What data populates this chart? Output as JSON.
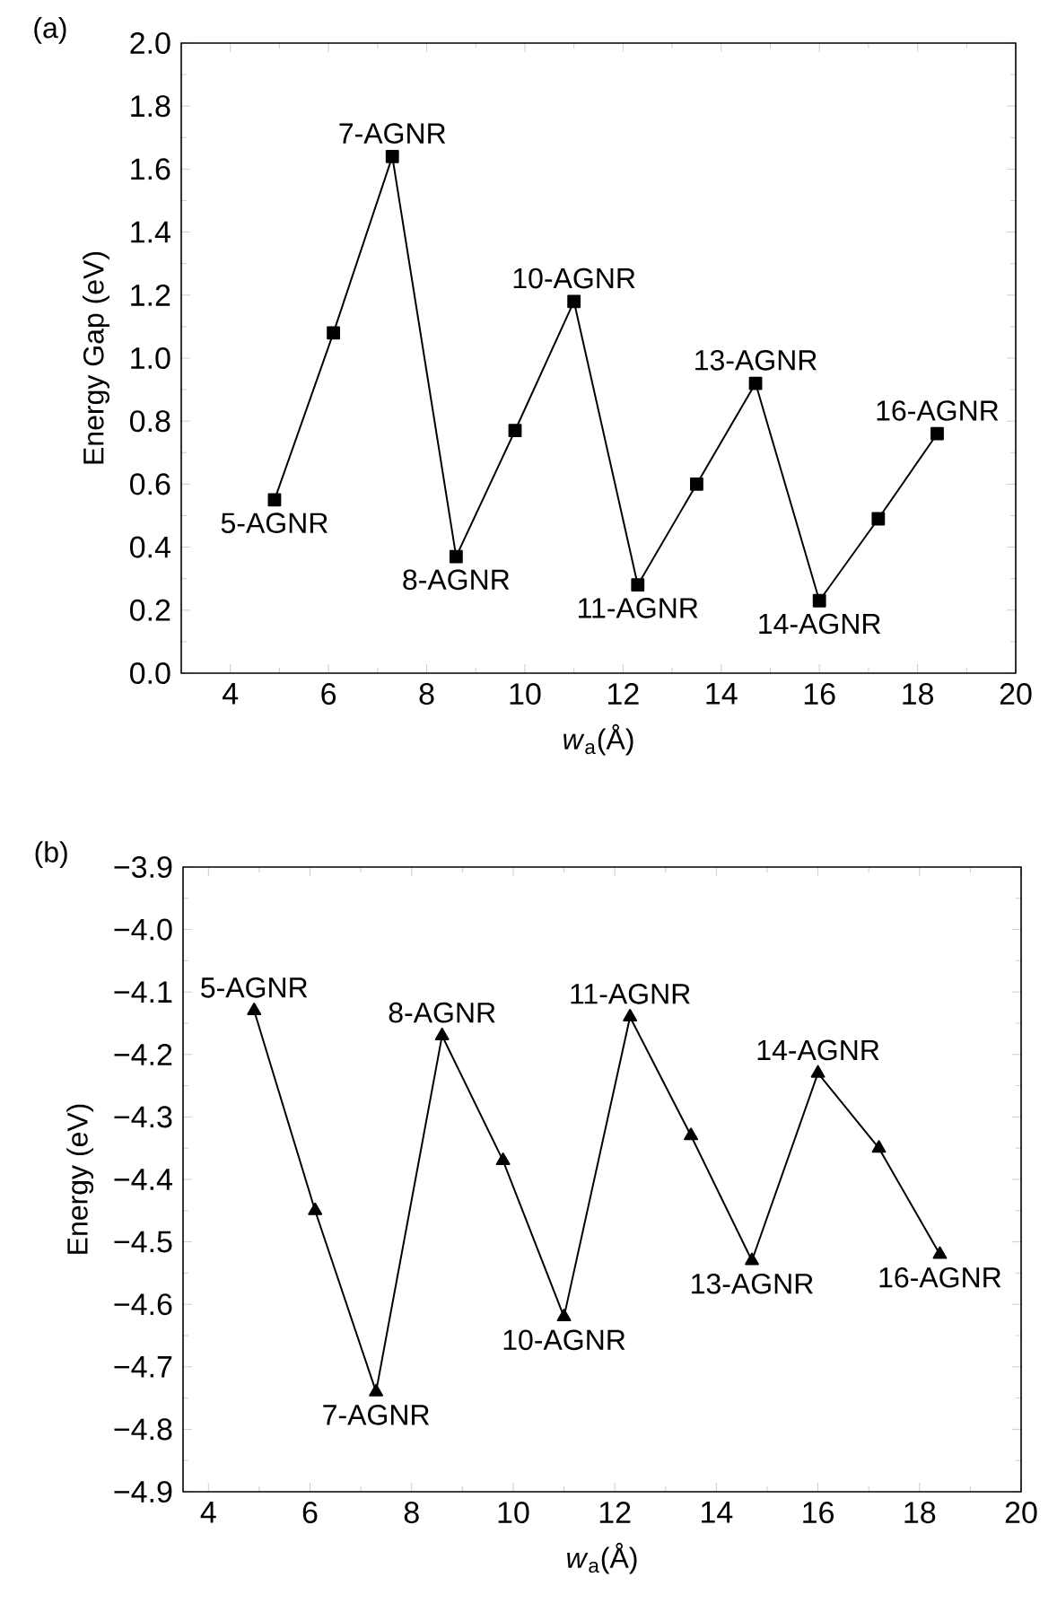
{
  "chart_data": [
    {
      "type": "line",
      "title": "(a)",
      "xlabel": "*w*$_{a}$(Å)",
      "ylabel": "Energy Gap (eV)",
      "x": [
        4.9,
        6.1,
        7.3,
        8.6,
        9.8,
        11.0,
        12.3,
        13.5,
        14.7,
        16.0,
        17.2,
        18.4
      ],
      "series": [
        {
          "color": "#000000",
          "values": [
            0.55,
            1.08,
            1.64,
            0.37,
            0.77,
            1.18,
            0.28,
            0.6,
            0.92,
            0.23,
            0.49,
            0.76
          ]
        }
      ],
      "marker": "square",
      "line_style": "solid",
      "grid": false,
      "xlim": [
        3,
        20
      ],
      "xticks": [
        4,
        6,
        8,
        10,
        12,
        14,
        16,
        18,
        20
      ],
      "ylim": [
        0,
        2.0
      ],
      "yticks": [
        {
          "value": 0,
          "label": "0.0"
        },
        {
          "value": 0.2,
          "label": "0.2"
        },
        {
          "value": 0.4,
          "label": "0.4"
        },
        {
          "value": 0.6,
          "label": "0.6"
        },
        {
          "value": 0.8,
          "label": "0.8"
        },
        {
          "value": 1.0,
          "label": "1.0"
        },
        {
          "value": 1.2,
          "label": "1.2"
        },
        {
          "value": 1.4,
          "label": "1.4"
        },
        {
          "value": 1.6,
          "label": "1.6"
        },
        {
          "value": 1.8,
          "label": "1.8"
        },
        {
          "value": 2.0,
          "label": "2.0"
        }
      ],
      "annotations": [
        {
          "text": "5-AGNR",
          "x": 4.9,
          "y": 0.55
        },
        {
          "text": "7-AGNR",
          "x": 7.3,
          "y": 1.64
        },
        {
          "text": "8-AGNR",
          "x": 8.6,
          "y": 0.37
        },
        {
          "text": "10-AGNR",
          "x": 11.0,
          "y": 1.18
        },
        {
          "text": "11-AGNR",
          "x": 12.3,
          "y": 0.28
        },
        {
          "text": "13-AGNR",
          "x": 14.7,
          "y": 0.92
        },
        {
          "text": "14-AGNR",
          "x": 16.0,
          "y": 0.23
        },
        {
          "text": "16-AGNR",
          "x": 18.4,
          "y": 0.76
        }
      ]
    },
    {
      "type": "line",
      "title": "(b)",
      "xlabel": "*w*$_{a}$(Å)",
      "ylabel": "Energy (eV)",
      "x": [
        4.9,
        6.1,
        7.3,
        8.6,
        9.8,
        11.0,
        12.3,
        13.5,
        14.7,
        16.0,
        17.2,
        18.4
      ],
      "series": [
        {
          "color": "#000000",
          "values": [
            -4.13,
            -4.45,
            -4.74,
            -4.17,
            -4.37,
            -4.62,
            -4.14,
            -4.33,
            -4.53,
            -4.23,
            -4.35,
            -4.52
          ]
        }
      ],
      "marker": "triangle",
      "line_style": "solid",
      "grid": false,
      "xlim": [
        3.5,
        20
      ],
      "xticks": [
        4,
        6,
        8,
        10,
        12,
        14,
        16,
        18,
        20
      ],
      "ylim": [
        -4.9,
        -3.9
      ],
      "yticks": [
        {
          "value": -4.9,
          "label": "−4.9"
        },
        {
          "value": -4.8,
          "label": "−4.8"
        },
        {
          "value": -4.7,
          "label": "−4.7"
        },
        {
          "value": -4.6,
          "label": "−4.6"
        },
        {
          "value": -4.5,
          "label": "−4.5"
        },
        {
          "value": -4.4,
          "label": "−4.4"
        },
        {
          "value": -4.3,
          "label": "−4.3"
        },
        {
          "value": -4.2,
          "label": "−4.2"
        },
        {
          "value": -4.1,
          "label": "−4.1"
        },
        {
          "value": -4.0,
          "label": "−4.0"
        },
        {
          "value": -3.9,
          "label": "−3.9"
        }
      ],
      "annotations": [
        {
          "text": "5-AGNR",
          "x": 4.9,
          "y": -4.13
        },
        {
          "text": "7-AGNR",
          "x": 7.3,
          "y": -4.74
        },
        {
          "text": "8-AGNR",
          "x": 8.6,
          "y": -4.17
        },
        {
          "text": "10-AGNR",
          "x": 11.0,
          "y": -4.62
        },
        {
          "text": "11-AGNR",
          "x": 12.3,
          "y": -4.14
        },
        {
          "text": "13-AGNR",
          "x": 14.7,
          "y": -4.53
        },
        {
          "text": "14-AGNR",
          "x": 16.0,
          "y": -4.23
        },
        {
          "text": "16-AGNR",
          "x": 18.4,
          "y": -4.52
        }
      ]
    }
  ]
}
